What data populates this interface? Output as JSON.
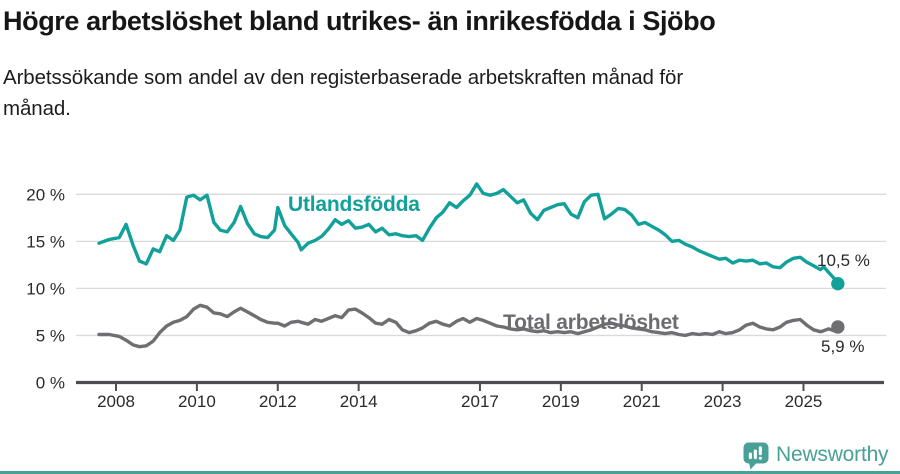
{
  "chart_data": {
    "type": "line",
    "title": "Högre arbetslöshet bland utrikes- än inrikesfödda i Sjöbo",
    "subtitle_lines": [
      "Arbetssökande som andel av den registerbaserade arbetskraften månad för",
      "månad."
    ],
    "x_unit": "decimal_year_monthly",
    "xlim": [
      2007.0,
      2027.1
    ],
    "ylim": [
      0,
      22.5
    ],
    "grid": "horizontal",
    "legend_position": "inline-labels",
    "yticks": [
      {
        "v": 0,
        "label": "0 %"
      },
      {
        "v": 5,
        "label": "5 %"
      },
      {
        "v": 10,
        "label": "10 %"
      },
      {
        "v": 15,
        "label": "15 %"
      },
      {
        "v": 20,
        "label": "20 %"
      }
    ],
    "xticks": [
      {
        "v": 2008,
        "label": "2008"
      },
      {
        "v": 2010,
        "label": "2010"
      },
      {
        "v": 2012,
        "label": "2012"
      },
      {
        "v": 2014,
        "label": "2014"
      },
      {
        "v": 2017,
        "label": "2017"
      },
      {
        "v": 2019,
        "label": "2019"
      },
      {
        "v": 2021,
        "label": "2021"
      },
      {
        "v": 2023,
        "label": "2023"
      },
      {
        "v": 2025,
        "label": "2025"
      }
    ],
    "x": [
      2007.58,
      2007.83,
      2008.08,
      2008.25,
      2008.42,
      2008.58,
      2008.75,
      2008.92,
      2009.08,
      2009.25,
      2009.42,
      2009.58,
      2009.75,
      2009.92,
      2010.08,
      2010.25,
      2010.42,
      2010.58,
      2010.75,
      2010.92,
      2011.08,
      2011.25,
      2011.42,
      2011.58,
      2011.75,
      2011.92,
      2012.0,
      2012.17,
      2012.33,
      2012.5,
      2012.58,
      2012.75,
      2012.92,
      2013.08,
      2013.25,
      2013.42,
      2013.58,
      2013.75,
      2013.92,
      2014.08,
      2014.25,
      2014.42,
      2014.58,
      2014.75,
      2014.92,
      2015.08,
      2015.25,
      2015.42,
      2015.58,
      2015.75,
      2015.92,
      2016.08,
      2016.25,
      2016.42,
      2016.58,
      2016.75,
      2016.92,
      2017.08,
      2017.25,
      2017.42,
      2017.58,
      2017.75,
      2017.92,
      2018.08,
      2018.25,
      2018.42,
      2018.58,
      2018.75,
      2018.92,
      2019.08,
      2019.25,
      2019.42,
      2019.58,
      2019.75,
      2019.92,
      2020.08,
      2020.25,
      2020.42,
      2020.58,
      2020.75,
      2020.92,
      2021.08,
      2021.25,
      2021.42,
      2021.58,
      2021.75,
      2021.92,
      2022.08,
      2022.25,
      2022.42,
      2022.58,
      2022.75,
      2022.92,
      2023.08,
      2023.25,
      2023.42,
      2023.58,
      2023.75,
      2023.92,
      2024.08,
      2024.25,
      2024.42,
      2024.58,
      2024.75,
      2024.92,
      2025.08,
      2025.25,
      2025.42,
      2025.5,
      2025.62,
      2025.75,
      2025.85
    ],
    "series": [
      {
        "name": "Utlandsfödda",
        "color": "#12a09a",
        "label_color": "#12a09a",
        "end_label": "10,5 %",
        "last_value": 10.5,
        "values": [
          14.8,
          15.2,
          15.4,
          16.8,
          14.6,
          12.9,
          12.6,
          14.2,
          13.9,
          15.6,
          15.1,
          16.2,
          19.7,
          19.9,
          19.4,
          19.9,
          17.0,
          16.2,
          16.0,
          17.0,
          18.7,
          16.9,
          15.8,
          15.5,
          15.4,
          16.2,
          18.6,
          16.7,
          15.8,
          14.9,
          14.1,
          14.8,
          15.1,
          15.5,
          16.3,
          17.3,
          16.8,
          17.2,
          16.4,
          16.5,
          16.8,
          16.0,
          16.4,
          15.7,
          15.8,
          15.6,
          15.5,
          15.6,
          15.1,
          16.4,
          17.5,
          18.1,
          19.1,
          18.6,
          19.3,
          19.9,
          21.1,
          20.1,
          19.9,
          20.1,
          20.5,
          19.8,
          19.1,
          19.4,
          18.0,
          17.3,
          18.3,
          18.6,
          18.9,
          19.0,
          17.9,
          17.5,
          19.2,
          19.9,
          20.0,
          17.4,
          17.9,
          18.5,
          18.4,
          17.8,
          16.8,
          17.0,
          16.6,
          16.2,
          15.7,
          15.0,
          15.1,
          14.7,
          14.4,
          14.0,
          13.7,
          13.4,
          13.1,
          13.2,
          12.7,
          13.0,
          12.9,
          13.0,
          12.6,
          12.7,
          12.3,
          12.2,
          12.8,
          13.2,
          13.3,
          12.8,
          12.4,
          12.0,
          12.3,
          11.7,
          11.1,
          10.5
        ]
      },
      {
        "name": "Total arbetslöshet",
        "color": "#6f6f73",
        "label_color": "#6b6b70",
        "end_label": "5,9 %",
        "last_value": 5.9,
        "values": [
          5.1,
          5.1,
          4.9,
          4.5,
          4.0,
          3.8,
          3.9,
          4.4,
          5.3,
          6.0,
          6.4,
          6.6,
          7.0,
          7.8,
          8.2,
          8.0,
          7.4,
          7.3,
          7.0,
          7.5,
          7.9,
          7.5,
          7.1,
          6.7,
          6.4,
          6.3,
          6.3,
          6.0,
          6.4,
          6.5,
          6.4,
          6.2,
          6.7,
          6.5,
          6.8,
          7.1,
          6.9,
          7.7,
          7.8,
          7.4,
          6.9,
          6.3,
          6.2,
          6.7,
          6.4,
          5.6,
          5.3,
          5.5,
          5.8,
          6.3,
          6.5,
          6.2,
          6.0,
          6.5,
          6.8,
          6.4,
          6.8,
          6.6,
          6.3,
          6.0,
          5.9,
          5.7,
          5.6,
          5.7,
          5.5,
          5.4,
          5.5,
          5.3,
          5.4,
          5.3,
          5.4,
          5.2,
          5.4,
          5.6,
          5.9,
          6.2,
          6.3,
          6.1,
          6.0,
          5.8,
          5.7,
          5.6,
          5.4,
          5.3,
          5.2,
          5.3,
          5.1,
          5.0,
          5.2,
          5.1,
          5.2,
          5.1,
          5.4,
          5.2,
          5.3,
          5.6,
          6.1,
          6.3,
          5.9,
          5.7,
          5.6,
          5.9,
          6.4,
          6.6,
          6.7,
          6.1,
          5.6,
          5.4,
          5.5,
          5.7,
          5.5,
          5.9
        ]
      }
    ]
  },
  "colors": {
    "accent_teal": "#12a09a",
    "logo_teal": "#48a096",
    "gridline": "#dadada",
    "axis": "#4e4e52",
    "tick_text": "#2b2b2f",
    "annotation_text": "#2a2a2e"
  },
  "footer": {
    "brand": "Newsworthy"
  }
}
